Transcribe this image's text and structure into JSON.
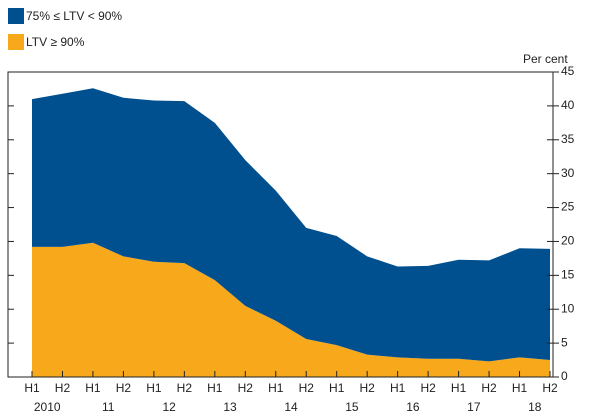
{
  "chart_data": {
    "type": "stacked_area",
    "y_unit_label": "Per cent",
    "categories": [
      "H1",
      "H2",
      "H1",
      "H2",
      "H1",
      "H2",
      "H1",
      "H2",
      "H1",
      "H2",
      "H1",
      "H2",
      "H1",
      "H2",
      "H1",
      "H2",
      "H1",
      "H2"
    ],
    "year_labels": [
      "2010",
      "11",
      "12",
      "13",
      "14",
      "15",
      "16",
      "17",
      "18"
    ],
    "series": [
      {
        "name": "75% ≤ LTV < 90%",
        "color": "#00508f",
        "values": [
          21.8,
          22.6,
          22.8,
          23.4,
          23.8,
          23.9,
          23.2,
          21.5,
          19.2,
          16.4,
          16.1,
          14.5,
          13.4,
          13.7,
          14.6,
          14.9,
          16.1,
          16.4
        ]
      },
      {
        "name": "LTV ≥ 90%",
        "color": "#f7a81b",
        "values": [
          19.2,
          19.2,
          19.8,
          17.8,
          17,
          16.8,
          14.3,
          10.5,
          8.3,
          5.6,
          4.7,
          3.3,
          2.9,
          2.7,
          2.7,
          2.3,
          2.9,
          2.5
        ]
      }
    ],
    "ylim": [
      0,
      45
    ],
    "yticks": [
      0,
      5,
      10,
      15,
      20,
      25,
      30,
      35,
      40,
      45
    ]
  }
}
